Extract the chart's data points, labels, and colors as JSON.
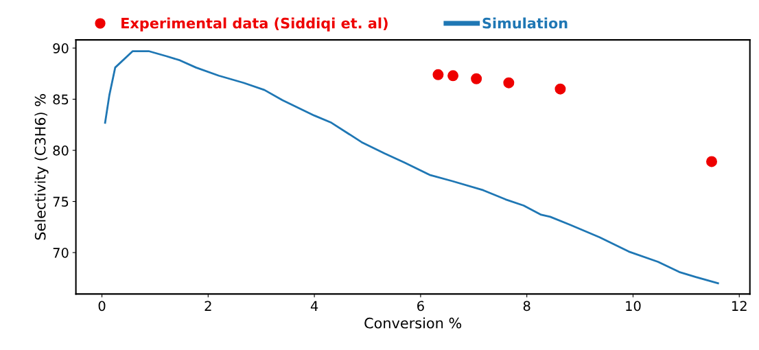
{
  "chart_data": {
    "type": "line",
    "xlabel": "Conversion %",
    "ylabel": "Selectivity (C3H6) %",
    "xlim": [
      -0.49,
      12.2
    ],
    "ylim": [
      65.95,
      90.8
    ],
    "xticks": [
      0,
      2,
      4,
      6,
      8,
      10,
      12
    ],
    "yticks": [
      70,
      75,
      80,
      85,
      90
    ],
    "grid": false,
    "legend": "top",
    "series": [
      {
        "name": "Experimental data (Siddiqi et. al)",
        "type": "scatter",
        "marker": "circle",
        "color": "#ee0000",
        "x": [
          6.33,
          6.61,
          7.05,
          7.66,
          8.63,
          11.48
        ],
        "values": [
          87.4,
          87.3,
          87.0,
          86.6,
          86.0,
          78.9
        ]
      },
      {
        "name": "Simulation",
        "marker": "none",
        "color": "#1f77b4",
        "x": [
          0.06,
          0.14,
          0.25,
          0.58,
          0.88,
          1.22,
          1.47,
          1.77,
          2.2,
          2.67,
          3.06,
          3.4,
          4.0,
          4.32,
          4.89,
          5.32,
          5.7,
          6.17,
          6.59,
          7.18,
          7.6,
          7.94,
          8.27,
          8.44,
          8.82,
          9.37,
          9.92,
          10.47,
          10.87,
          11.19,
          11.6
        ],
        "values": [
          82.7,
          85.4,
          88.1,
          89.7,
          89.7,
          89.2,
          88.8,
          88.1,
          87.3,
          86.6,
          85.9,
          84.9,
          83.4,
          82.7,
          80.8,
          79.7,
          78.8,
          77.6,
          77.0,
          76.1,
          75.2,
          74.6,
          73.7,
          73.5,
          72.7,
          71.5,
          70.1,
          69.1,
          68.1,
          67.6,
          67.0
        ]
      }
    ]
  }
}
